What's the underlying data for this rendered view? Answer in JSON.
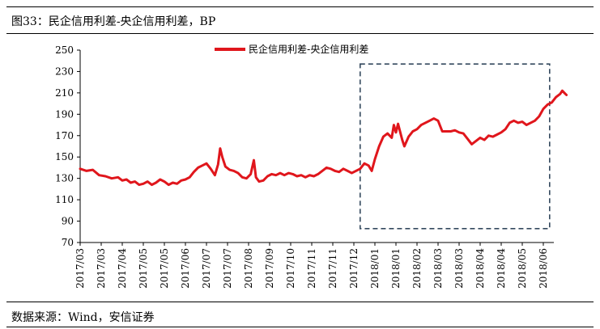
{
  "figure_title": "图33：民企信用利差-央企信用利差，BP",
  "source_note": "数据来源：Wind，安信证券",
  "chart_data": {
    "type": "line",
    "title": "",
    "xlabel": "",
    "ylabel": "",
    "ylim": [
      70,
      250
    ],
    "yticks": [
      70,
      90,
      110,
      130,
      150,
      170,
      190,
      210,
      230,
      250
    ],
    "x_tick_labels": [
      "2017/03",
      "2017/03",
      "2017/04",
      "2017/05",
      "2017/05",
      "2017/06",
      "2017/07",
      "2017/07",
      "2017/08",
      "2017/09",
      "2017/10",
      "2017/11",
      "2017/11",
      "2017/12",
      "2018/01",
      "2018/01",
      "2018/02",
      "2018/03",
      "2018/03",
      "2018/04",
      "2018/04",
      "2018/05",
      "2018/06"
    ],
    "grid": false,
    "legend": {
      "position": "top-center"
    },
    "highlight_box": {
      "from_index": 13.3,
      "to_index": 22.3,
      "ymin": 83,
      "ymax": 237,
      "style": "dashed",
      "color": "#34495e"
    },
    "series": [
      {
        "name": "民企信用利差-央企信用利差",
        "color": "#e0161c",
        "points": [
          [
            0.0,
            139
          ],
          [
            0.3,
            137
          ],
          [
            0.6,
            138
          ],
          [
            0.9,
            133
          ],
          [
            1.2,
            132
          ],
          [
            1.5,
            130
          ],
          [
            1.8,
            131
          ],
          [
            2.0,
            128
          ],
          [
            2.2,
            129
          ],
          [
            2.4,
            126
          ],
          [
            2.6,
            127
          ],
          [
            2.8,
            124
          ],
          [
            3.0,
            125
          ],
          [
            3.2,
            127
          ],
          [
            3.4,
            124
          ],
          [
            3.6,
            126
          ],
          [
            3.8,
            129
          ],
          [
            4.0,
            127
          ],
          [
            4.2,
            124
          ],
          [
            4.4,
            126
          ],
          [
            4.6,
            125
          ],
          [
            4.8,
            128
          ],
          [
            5.0,
            129
          ],
          [
            5.2,
            131
          ],
          [
            5.4,
            136
          ],
          [
            5.6,
            140
          ],
          [
            5.8,
            142
          ],
          [
            6.0,
            144
          ],
          [
            6.2,
            139
          ],
          [
            6.4,
            133
          ],
          [
            6.55,
            143
          ],
          [
            6.65,
            158
          ],
          [
            6.75,
            150
          ],
          [
            6.9,
            141
          ],
          [
            7.1,
            138
          ],
          [
            7.3,
            137
          ],
          [
            7.5,
            135
          ],
          [
            7.7,
            131
          ],
          [
            7.9,
            130
          ],
          [
            8.1,
            134
          ],
          [
            8.25,
            147
          ],
          [
            8.35,
            131
          ],
          [
            8.5,
            127
          ],
          [
            8.7,
            128
          ],
          [
            8.9,
            132
          ],
          [
            9.1,
            134
          ],
          [
            9.3,
            133
          ],
          [
            9.5,
            135
          ],
          [
            9.7,
            133
          ],
          [
            9.9,
            135
          ],
          [
            10.1,
            134
          ],
          [
            10.3,
            132
          ],
          [
            10.5,
            133
          ],
          [
            10.7,
            131
          ],
          [
            10.9,
            133
          ],
          [
            11.1,
            132
          ],
          [
            11.3,
            134
          ],
          [
            11.5,
            137
          ],
          [
            11.7,
            140
          ],
          [
            11.9,
            139
          ],
          [
            12.1,
            137
          ],
          [
            12.3,
            136
          ],
          [
            12.5,
            139
          ],
          [
            12.7,
            137
          ],
          [
            12.9,
            135
          ],
          [
            13.1,
            137
          ],
          [
            13.3,
            139
          ],
          [
            13.5,
            144
          ],
          [
            13.7,
            142
          ],
          [
            13.85,
            137
          ],
          [
            14.0,
            148
          ],
          [
            14.2,
            160
          ],
          [
            14.4,
            169
          ],
          [
            14.6,
            172
          ],
          [
            14.8,
            168
          ],
          [
            14.9,
            180
          ],
          [
            15.0,
            173
          ],
          [
            15.1,
            181
          ],
          [
            15.3,
            166
          ],
          [
            15.4,
            160
          ],
          [
            15.6,
            169
          ],
          [
            15.8,
            174
          ],
          [
            16.0,
            176
          ],
          [
            16.2,
            180
          ],
          [
            16.4,
            182
          ],
          [
            16.6,
            184
          ],
          [
            16.8,
            186
          ],
          [
            17.0,
            184
          ],
          [
            17.1,
            179
          ],
          [
            17.2,
            174
          ],
          [
            17.4,
            174
          ],
          [
            17.6,
            174
          ],
          [
            17.8,
            175
          ],
          [
            18.0,
            173
          ],
          [
            18.2,
            172
          ],
          [
            18.4,
            167
          ],
          [
            18.6,
            162
          ],
          [
            18.8,
            165
          ],
          [
            19.0,
            168
          ],
          [
            19.2,
            166
          ],
          [
            19.4,
            170
          ],
          [
            19.6,
            169
          ],
          [
            19.8,
            171
          ],
          [
            20.0,
            173
          ],
          [
            20.2,
            176
          ],
          [
            20.4,
            182
          ],
          [
            20.6,
            184
          ],
          [
            20.8,
            182
          ],
          [
            21.0,
            183
          ],
          [
            21.2,
            180
          ],
          [
            21.4,
            182
          ],
          [
            21.6,
            184
          ],
          [
            21.8,
            188
          ],
          [
            22.0,
            195
          ],
          [
            22.2,
            199
          ],
          [
            22.4,
            201
          ],
          [
            22.6,
            206
          ],
          [
            22.8,
            209
          ],
          [
            22.9,
            212
          ],
          [
            23.0,
            210
          ],
          [
            23.1,
            208
          ]
        ]
      }
    ]
  }
}
